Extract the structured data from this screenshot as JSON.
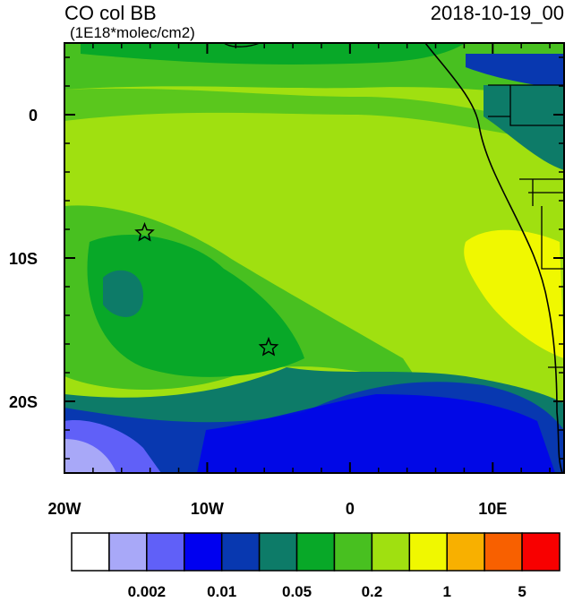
{
  "map": {
    "title": "CO col BB",
    "subtitle": "(1E18*molec/cm2)",
    "time": "2018-10-19_00",
    "xlim": [
      -20,
      15
    ],
    "ylim": [
      -25,
      5
    ],
    "xticks": [
      {
        "value": -20,
        "label": "20W"
      },
      {
        "value": -10,
        "label": "10W"
      },
      0,
      {
        "value": 10,
        "label": "10E"
      }
    ],
    "yticks": [
      0,
      {
        "value": -10,
        "label": "10S"
      },
      {
        "value": -20,
        "label": "20S"
      }
    ],
    "colorbar": {
      "colors": [
        "#ffffff",
        "#a8a8f8",
        "#6060f8",
        "#0000f0",
        "#0838b0",
        "#0d7b68",
        "#08a828",
        "#48c020",
        "#a0e010",
        "#f0f800",
        "#f8b000",
        "#f86000",
        "#f80000"
      ],
      "labels": [
        "0.002",
        "0.01",
        "0.05",
        "0.2",
        "1",
        "5"
      ]
    }
  }
}
